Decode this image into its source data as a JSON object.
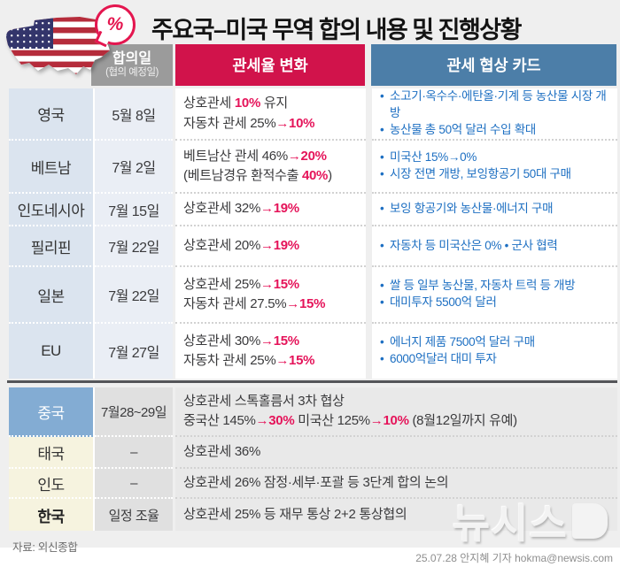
{
  "ui": {
    "bullet": "•",
    "percent": "%"
  },
  "title": "주요국–미국 무역 합의 내용 및 진행상황",
  "header": {
    "date_col": "합의일",
    "date_col_sub": "(협의 예정일)",
    "tariff_col": "관세율 변화",
    "card_col": "관세 협상 카드"
  },
  "colors": {
    "header_red": "#d1134b",
    "header_blue": "#4c7ea8",
    "header_gray": "#9b9b9b",
    "accent_red": "#e5145a",
    "card_blue": "#1d6fc2",
    "china_blue": "#83acd3",
    "cream": "#f6f3df",
    "country_blue": "#dbe4ef"
  },
  "sections": {
    "agreed": {
      "rows": [
        {
          "country": "영국",
          "date": "5월 8일",
          "tariff_lines": [
            [
              {
                "t": "상호관세 "
              },
              {
                "t": "10%",
                "c": "red"
              },
              {
                "t": " 유지"
              }
            ],
            [
              {
                "t": "자동차 관세 25%"
              },
              {
                "t": "→10%",
                "c": "red"
              }
            ]
          ],
          "cards": [
            "소고기·옥수수·에탄올·기계 등 농산물 시장 개방",
            "농산물 총 50억 달러 수입 확대"
          ]
        },
        {
          "country": "베트남",
          "date": "7월 2일",
          "tariff_lines": [
            [
              {
                "t": "베트남산 관세 46%"
              },
              {
                "t": "→20%",
                "c": "red"
              }
            ],
            [
              {
                "t": "(베트남경유 환적수출 "
              },
              {
                "t": "40%",
                "c": "red"
              },
              {
                "t": ")"
              }
            ]
          ],
          "cards": [
            "미국산 15%→0%",
            "시장 전면 개방, 보잉항공기 50대 구매"
          ]
        },
        {
          "country": "인도네시아",
          "date": "7월 15일",
          "tariff_lines": [
            [
              {
                "t": "상호관세 32%"
              },
              {
                "t": "→19%",
                "c": "red"
              }
            ]
          ],
          "cards": [
            "보잉 항공기와 농산물·에너지 구매"
          ]
        },
        {
          "country": "필리핀",
          "date": "7월 22일",
          "tariff_lines": [
            [
              {
                "t": "상호관세 20%"
              },
              {
                "t": "→19%",
                "c": "red"
              }
            ]
          ],
          "cards": [
            "자동차 등 미국산은 0% • 군사 협력"
          ]
        },
        {
          "country": "일본",
          "date": "7월 22일",
          "tariff_lines": [
            [
              {
                "t": "상호관세 25%"
              },
              {
                "t": "→15%",
                "c": "red"
              }
            ],
            [
              {
                "t": "자동차 관세 27.5%"
              },
              {
                "t": "→15%",
                "c": "red"
              }
            ]
          ],
          "cards": [
            "쌀 등 일부 농산물, 자동차 트럭 등 개방",
            "대미투자 5500억 달러"
          ]
        },
        {
          "country": "EU",
          "date": "7월 27일",
          "tariff_lines": [
            [
              {
                "t": "상호관세 30%"
              },
              {
                "t": "→15%",
                "c": "red"
              }
            ],
            [
              {
                "t": "자동차 관세 25%"
              },
              {
                "t": "→15%",
                "c": "red"
              }
            ]
          ],
          "cards": [
            "에너지 제품 7500억 달러 구매",
            "6000억달러 대미 투자"
          ]
        }
      ]
    },
    "pending": {
      "rows": [
        {
          "country": "중국",
          "date": "7월28~29일",
          "lines": [
            [
              {
                "t": "상호관세 스톡홀름서 3차 협상"
              }
            ],
            [
              {
                "t": "중국산 145%"
              },
              {
                "t": "→30%",
                "c": "red"
              },
              {
                "t": " 미국산 125%"
              },
              {
                "t": "→10%",
                "c": "red"
              },
              {
                "t": " (8월12일까지 유예)"
              }
            ]
          ]
        },
        {
          "country": "태국",
          "date": "–",
          "lines": [
            [
              {
                "t": "상호관세 36%"
              }
            ]
          ]
        },
        {
          "country": "인도",
          "date": "–",
          "lines": [
            [
              {
                "t": "상호관세 26% 잠정·세부·포괄 등 3단계 합의 논의"
              }
            ]
          ]
        },
        {
          "country": "한국",
          "date": "일정 조율",
          "lines": [
            [
              {
                "t": "상호관세 25% 등 재무 통상 2+2 통상협의"
              }
            ]
          ]
        }
      ]
    }
  },
  "footer": {
    "source": "자료: 외신종합",
    "watermark": "뉴시스",
    "credit": "25.07.28 안지혜 기자 hokma@newsis.com"
  }
}
